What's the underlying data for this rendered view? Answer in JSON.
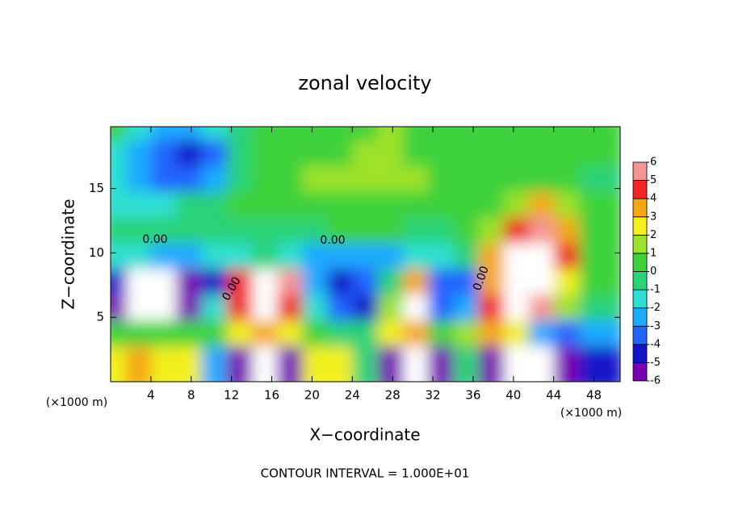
{
  "chart_data": {
    "type": "heatmap",
    "title": "zonal velocity",
    "x_label": "X−coordinate",
    "y_label": "Z−coordinate",
    "x_unit_label": "(×1000 m)",
    "y_unit_label": "(×1000 m)",
    "footer": "CONTOUR INTERVAL = 1.000E+01",
    "contour_labels": [
      "0.00",
      "0.00",
      "0.00",
      "0.00"
    ],
    "xlim": [
      0,
      50.6
    ],
    "ylim": [
      0,
      19.8
    ],
    "xticks": [
      4,
      8,
      12,
      16,
      20,
      24,
      28,
      32,
      36,
      40,
      44,
      48
    ],
    "yticks": [
      5,
      10,
      15
    ],
    "x": [
      1.25,
      3.75,
      6.25,
      8.75,
      11.25,
      13.75,
      16.25,
      18.75,
      21.25,
      23.75,
      26.25,
      28.75,
      31.25,
      33.75,
      36.25,
      38.75,
      41.25,
      43.75,
      46.25,
      48.75
    ],
    "y": [
      19,
      17,
      15,
      13,
      11,
      9,
      7,
      5,
      3,
      1
    ],
    "values": [
      [
        0.5,
        -1,
        -2,
        -2.5,
        -1,
        0,
        0.5,
        0.5,
        1,
        1,
        1,
        1.5,
        1,
        1,
        0.5,
        0.5,
        0.5,
        0.5,
        0.5,
        0.5
      ],
      [
        -1,
        -2.5,
        -3.5,
        -4,
        -3,
        -0.5,
        0.5,
        0.5,
        1,
        1,
        1.5,
        1.5,
        1,
        1,
        0.5,
        0.5,
        0.5,
        0.5,
        0.5,
        0.5
      ],
      [
        -1.5,
        -2.5,
        -3,
        -3,
        -2,
        -0.5,
        0.5,
        1,
        1.5,
        1.5,
        2,
        1.5,
        1.5,
        1,
        0.5,
        0.5,
        0.5,
        0.5,
        0.5,
        0
      ],
      [
        -1,
        -1.5,
        -1,
        -0.5,
        0,
        0.5,
        0.5,
        0.5,
        1,
        1,
        1,
        0.5,
        0.5,
        0.5,
        0.5,
        1,
        2,
        3.5,
        2,
        0.5
      ],
      [
        0,
        -0.5,
        -0.5,
        0,
        -0.5,
        0,
        0,
        0,
        0,
        0.5,
        0.5,
        0.5,
        0,
        0,
        0.5,
        2,
        4.5,
        5.5,
        4,
        1
      ],
      [
        -1,
        -1.5,
        -2,
        -2,
        -1.5,
        -1,
        0,
        -1,
        -2,
        -2,
        -2.5,
        -2,
        -1.5,
        -1.5,
        0,
        4,
        7,
        7,
        4.5,
        1
      ],
      [
        -4,
        -6.5,
        -7,
        -6,
        -4,
        5,
        7,
        6,
        -2,
        -4,
        -3,
        0,
        3.5,
        -3,
        -3,
        4,
        7,
        7,
        3,
        1
      ],
      [
        -5,
        -7,
        -7,
        -5,
        -1,
        5,
        7,
        5,
        -1,
        -3,
        -4,
        2,
        7,
        -3,
        -2,
        5,
        7,
        6,
        2,
        0
      ],
      [
        0.5,
        1,
        0.5,
        1,
        1,
        3,
        4,
        3,
        1,
        0,
        -0.5,
        3,
        3.5,
        1,
        2,
        4,
        3,
        -2,
        -3,
        -2
      ],
      [
        3,
        3.5,
        3,
        3,
        -2,
        -5,
        -7,
        -5,
        3,
        3,
        0,
        -5,
        -7,
        -5,
        0,
        -5,
        -7,
        -7,
        -5,
        -4
      ]
    ],
    "out_of_range_color": "#ffffff",
    "colorbar": {
      "levels": [
        -6,
        -5,
        -4,
        -3,
        -2,
        -1,
        0,
        1,
        2,
        3,
        4,
        5,
        6
      ],
      "colors": [
        "#7800b4",
        "#1414c8",
        "#2464ff",
        "#1eaaff",
        "#2ee0d2",
        "#2ad278",
        "#3ed23a",
        "#9ee22c",
        "#f2f01e",
        "#f4a812",
        "#f02424",
        "#f49494"
      ]
    }
  }
}
